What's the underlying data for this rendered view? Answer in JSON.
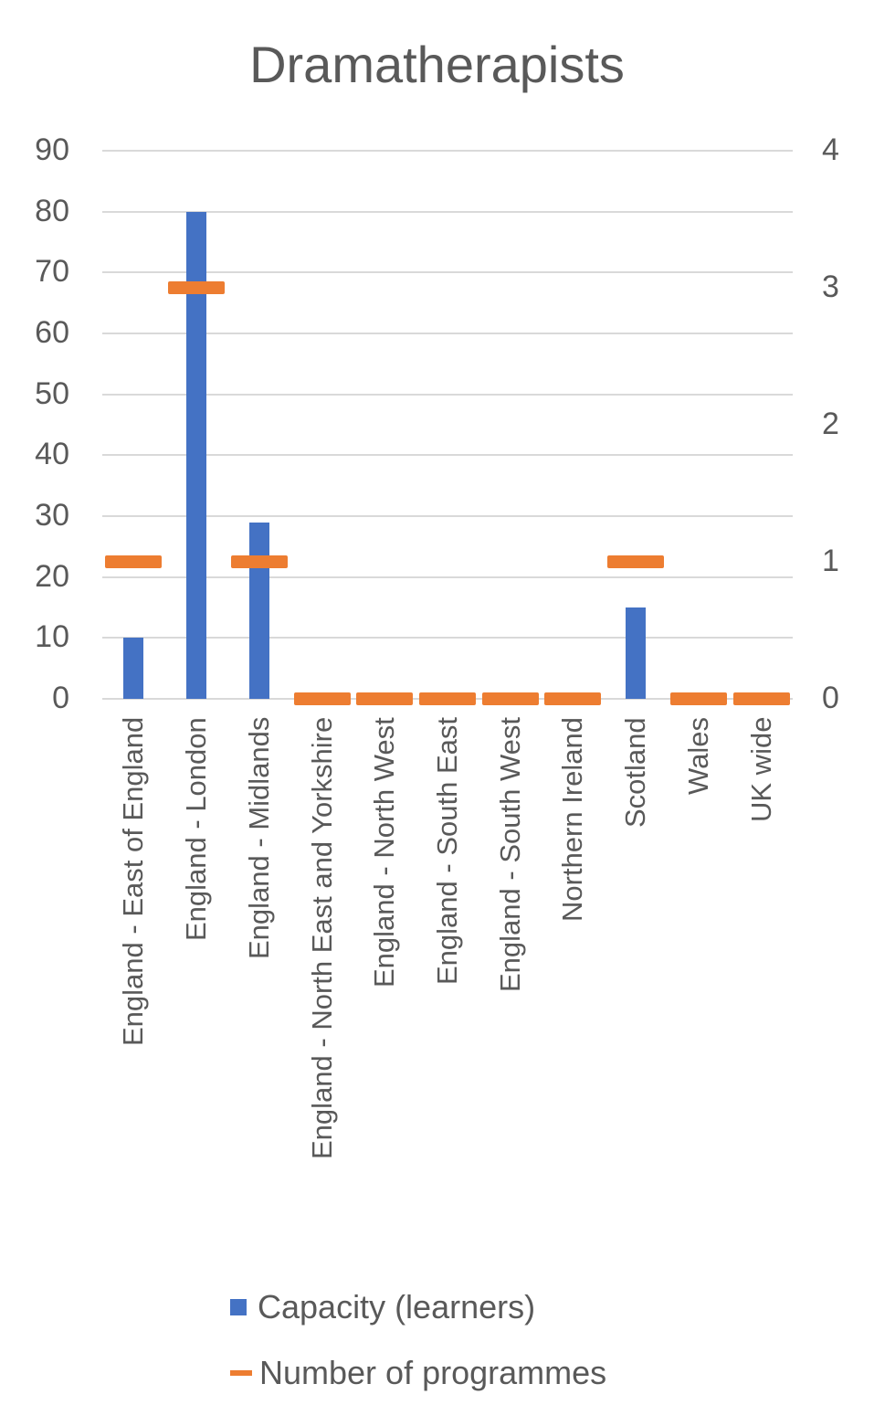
{
  "chart_data": {
    "type": "bar",
    "title": "Dramatherapists",
    "categories": [
      "England - East of England",
      "England - London",
      "England - Midlands",
      "England - North East and Yorkshire",
      "England - North West",
      "England - South East",
      "England - South West",
      "Northern Ireland",
      "Scotland",
      "Wales",
      "UK wide"
    ],
    "series": [
      {
        "name": "Capacity (learners)",
        "type": "bar",
        "axis": "left",
        "color": "#4472c4",
        "values": [
          10,
          80,
          29,
          0,
          0,
          0,
          0,
          0,
          15,
          0,
          0
        ]
      },
      {
        "name": "Number of programmes",
        "type": "marker",
        "axis": "right",
        "color": "#ed7d31",
        "values": [
          1,
          3,
          1,
          0,
          0,
          0,
          0,
          0,
          1,
          0,
          0
        ]
      }
    ],
    "xlabel": "",
    "ylabel": "",
    "ylim": [
      0,
      90
    ],
    "y2lim": [
      0,
      4
    ],
    "yticks": [
      "0",
      "10",
      "20",
      "30",
      "40",
      "50",
      "60",
      "70",
      "80",
      "90"
    ],
    "y2ticks": [
      "0",
      "1",
      "2",
      "3",
      "4"
    ],
    "grid": true,
    "legend_position": "bottom"
  },
  "legend": {
    "items": [
      "Capacity (learners)",
      "Number of programmes"
    ]
  }
}
